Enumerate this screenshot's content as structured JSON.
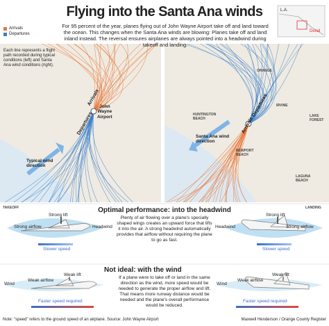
{
  "header": {
    "title": "Flying into the Santa Ana winds",
    "intro": "For 95 percent of the year, planes flying out of John Wayne Airport take off and land toward the ocean. This changes when the Santa Ana winds are blowing: Planes take off and land inland instead. The reversal ensures airplanes are always pointed into a headwind during takeoff and landing."
  },
  "legend": {
    "arrivals": "Arrivals",
    "departures": "Departures"
  },
  "locator": {
    "city": "L.A.",
    "detail": "Detail"
  },
  "maps": {
    "note": "Each line represents a flight path recorded during typical conditions (left) and Santa Ana wind conditions (right).",
    "left": {
      "arrivals": "Arrivals",
      "departures": "Departures",
      "airport": [
        "John",
        "Wayne",
        "Airport"
      ],
      "wind": "Typical wind direction"
    },
    "right": {
      "orange": "ORANGE",
      "huntington": "HUNTINGTON BEACH",
      "irvine": "IRVINE",
      "lake_forest": "LAKE FOREST",
      "newport": "NEWPORT BEACH",
      "laguna": "LAGUNA BEACH",
      "wind": "Santa Ana wind direction",
      "arrivals": "Arrivals",
      "departures": "Departures"
    }
  },
  "optimal": {
    "heading": "Optimal performance: into the headwind",
    "takeoff_label": "TAKEOFF",
    "landing_label": "LANDING",
    "body": "Plenty of air flowing over a plane's specially shaped wings creates an upward force that lifts it into the air. A strong headwind automatically provides that airflow without requiring the plane to go as fast.",
    "takeoff": {
      "lift": "Strong lift",
      "airflow": "Strong airflow",
      "wind": "Headwind",
      "speed": "Slower speed"
    },
    "landing": {
      "lift": "Strong lift",
      "airflow": "Strong airflow",
      "wind": "Headwind",
      "speed": "Slower speed"
    }
  },
  "not_ideal": {
    "heading": "Not ideal: with the wind",
    "body": "If a plane were to take off or land in the same direction as the wind, more speed would be needed to generate the proper airflow and lift. That means more runway distance would be needed and the plane's overall performance would be reduced.",
    "takeoff": {
      "lift": "Weak lift",
      "airflow": "Weak airflow",
      "wind": "Wind",
      "speed": "Faster speed required"
    },
    "landing": {
      "lift": "Weak lift",
      "airflow": "Weak airflow",
      "wind": "Wind",
      "speed": "Faster speed required"
    }
  },
  "footer": {
    "note": "Note: \"speed\" refers to the ground speed of an airplane. Source: John Wayne Airport",
    "credit": "Maxwell Henderson / Orange County Register"
  }
}
